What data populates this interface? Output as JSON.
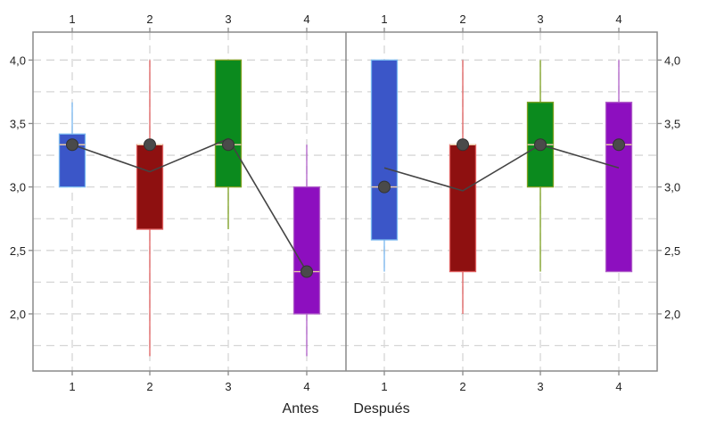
{
  "chart_data": {
    "type": "boxplot",
    "title": "",
    "ylim": [
      1.55,
      4.22
    ],
    "yticks": [
      "2,0",
      "2,5",
      "3,0",
      "3,5",
      "4,0"
    ],
    "ytick_values": [
      2.0,
      2.5,
      3.0,
      3.5,
      4.0
    ],
    "grid": true,
    "colors": [
      "#3b56c8",
      "#8e1010",
      "#0b8a1e",
      "#8d0fbf"
    ],
    "whisker_colors": [
      "#79b8f0",
      "#e06060",
      "#7da020",
      "#b060c8"
    ],
    "panels": [
      {
        "name": "Antes",
        "categories": [
          "1",
          "2",
          "3",
          "4"
        ],
        "boxes": [
          {
            "whislo": 3.0,
            "q1": 3.0,
            "med": 3.333,
            "q3": 3.417,
            "whishi": 3.667,
            "mean": 3.333
          },
          {
            "whislo": 1.667,
            "q1": 2.667,
            "med": 3.333,
            "q3": 3.333,
            "whishi": 4.0,
            "mean": 3.333
          },
          {
            "whislo": 2.667,
            "q1": 3.0,
            "med": 3.333,
            "q3": 4.0,
            "whishi": 4.0,
            "mean": 3.333
          },
          {
            "whislo": 1.667,
            "q1": 2.0,
            "med": 2.333,
            "q3": 3.0,
            "whishi": 3.333,
            "mean": 2.333
          }
        ],
        "line_values": [
          3.333,
          3.12,
          3.38,
          2.333
        ]
      },
      {
        "name": "Después",
        "categories": [
          "1",
          "2",
          "3",
          "4"
        ],
        "boxes": [
          {
            "whislo": 2.333,
            "q1": 2.583,
            "med": 3.0,
            "q3": 4.0,
            "whishi": 4.0,
            "mean": 3.0
          },
          {
            "whislo": 2.0,
            "q1": 2.333,
            "med": 3.333,
            "q3": 3.333,
            "whishi": 4.0,
            "mean": 3.333
          },
          {
            "whislo": 2.333,
            "q1": 3.0,
            "med": 3.333,
            "q3": 3.667,
            "whishi": 4.0,
            "mean": 3.333
          },
          {
            "whislo": 2.333,
            "q1": 2.333,
            "med": 3.333,
            "q3": 3.667,
            "whishi": 4.0,
            "mean": 3.333
          }
        ],
        "line_values": [
          3.15,
          2.97,
          3.333,
          3.15
        ]
      }
    ]
  }
}
